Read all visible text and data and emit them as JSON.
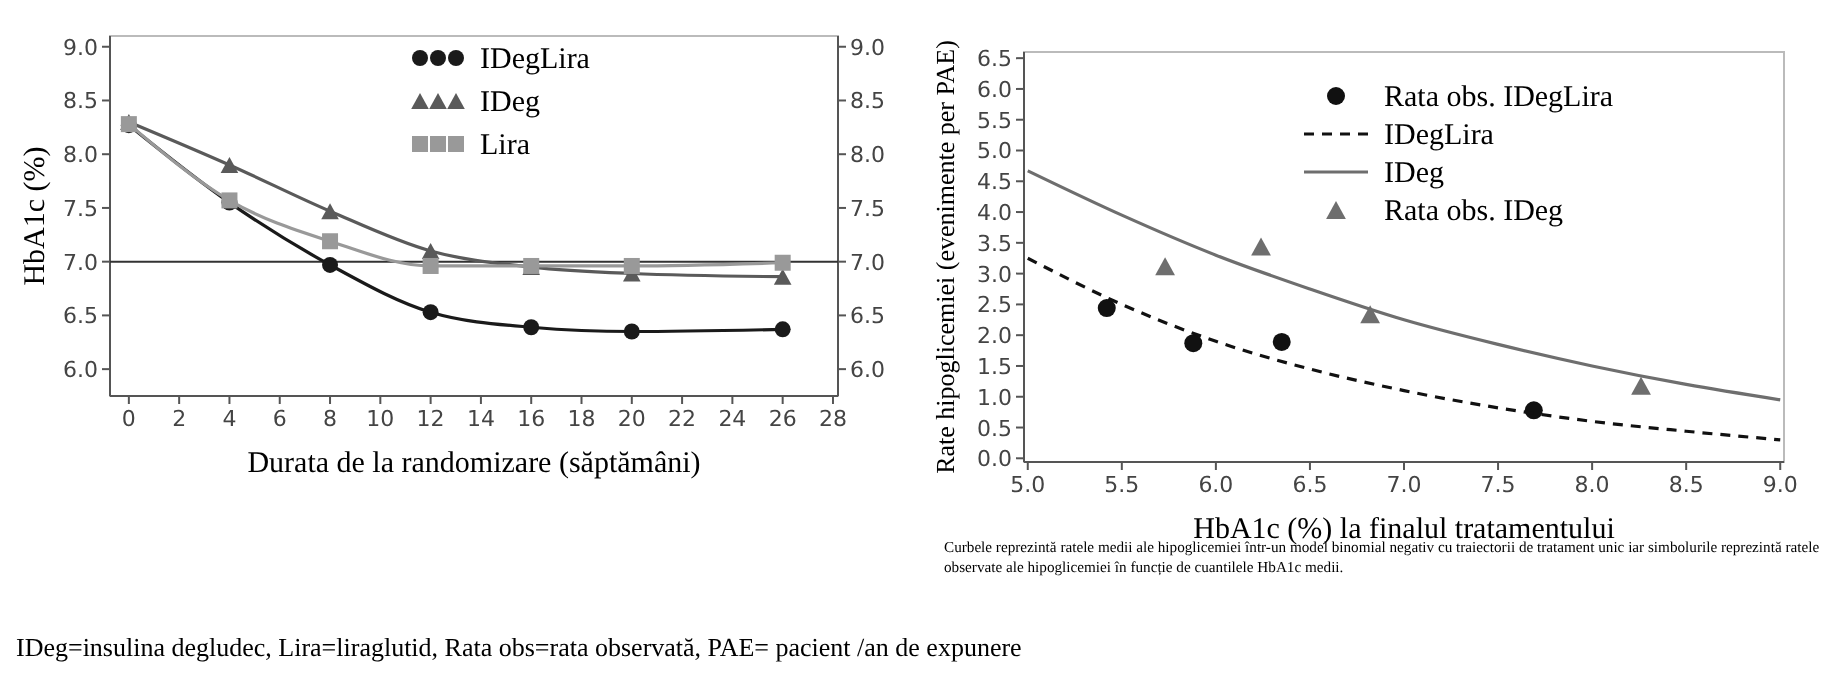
{
  "chart_data": [
    {
      "type": "line",
      "xlabel": "Durata de la randomizare (săptămâni)",
      "ylabel": "HbA1c (%)",
      "x": [
        0,
        4,
        8,
        12,
        16,
        20,
        26
      ],
      "series": [
        {
          "name": "IDegLira",
          "color": "#1a1a1a",
          "marker": "circle",
          "values": [
            8.27,
            7.55,
            6.97,
            6.53,
            6.39,
            6.35,
            6.37
          ]
        },
        {
          "name": "IDeg",
          "color": "#5a5a5a",
          "marker": "triangle",
          "values": [
            8.3,
            7.9,
            7.47,
            7.1,
            6.95,
            6.89,
            6.86
          ]
        },
        {
          "name": "Lira",
          "color": "#999999",
          "marker": "square",
          "values": [
            8.28,
            7.57,
            7.19,
            6.96,
            6.96,
            6.96,
            6.99
          ]
        }
      ],
      "xlim": [
        -0.75,
        28.2
      ],
      "xticks": [
        0,
        2,
        4,
        6,
        8,
        10,
        12,
        14,
        16,
        18,
        20,
        22,
        24,
        26,
        28
      ],
      "ylim": [
        5.75,
        9.1
      ],
      "yticks": [
        {
          "value": 6,
          "label": "6.0"
        },
        {
          "value": 6.5,
          "label": "6.5"
        },
        {
          "value": 7,
          "label": "7.0"
        },
        {
          "value": 7.5,
          "label": "7.5"
        },
        {
          "value": 8,
          "label": "8.0"
        },
        {
          "value": 8.5,
          "label": "8.5"
        },
        {
          "value": 9,
          "label": "9.0"
        }
      ],
      "y2lim": [
        5.75,
        9.1
      ],
      "y2ticks": [
        {
          "value": 6,
          "label": "6.0"
        },
        {
          "value": 6.5,
          "label": "6.5"
        },
        {
          "value": 7,
          "label": "7.0"
        },
        {
          "value": 7.5,
          "label": "7.5"
        },
        {
          "value": 8,
          "label": "8.0"
        },
        {
          "value": 8.5,
          "label": "8.5"
        },
        {
          "value": 9,
          "label": "9.0"
        }
      ],
      "ref_lines": [
        {
          "axis": "y",
          "value": 7,
          "color": "#333333"
        }
      ],
      "legend": "top",
      "grid": false,
      "annotations": [
        "IDeg=insulina degludec, Lira=liraglutid, Rata obs=rata observată, PAE= pacient /an de expunere"
      ]
    },
    {
      "type": "scatter",
      "xlabel": "HbA1c (%) la finalul tratamentului",
      "ylabel": "Rate hipoglicemiei (evenimente per PAE)",
      "series": [
        {
          "name": "Rata obs. IDegLira",
          "marker": "circle",
          "color": "#111111",
          "x": [
            5.42,
            5.88,
            6.35,
            7.69
          ],
          "values": [
            2.44,
            1.87,
            1.89,
            0.78
          ]
        },
        {
          "name": "IDegLira",
          "type": "line",
          "line_style": "dashed",
          "marker": "none",
          "color": "#111111",
          "x": [
            5,
            5.5,
            6,
            6.5,
            7,
            7.5,
            8,
            8.5,
            9
          ],
          "values": [
            3.25,
            2.5,
            1.9,
            1.45,
            1.1,
            0.82,
            0.6,
            0.44,
            0.3
          ]
        },
        {
          "name": "IDeg",
          "type": "line",
          "line_style": "solid",
          "marker": "none",
          "color": "#6e6e6e",
          "x": [
            5,
            5.5,
            6,
            6.5,
            7,
            7.5,
            8,
            8.5,
            9
          ],
          "values": [
            4.67,
            3.95,
            3.3,
            2.75,
            2.25,
            1.85,
            1.5,
            1.2,
            0.95
          ]
        },
        {
          "name": "Rata obs. IDeg",
          "marker": "triangle",
          "color": "#6e6e6e",
          "x": [
            5.73,
            6.24,
            6.82,
            8.26
          ],
          "values": [
            3.12,
            3.44,
            2.34,
            1.18
          ]
        }
      ],
      "xlim": [
        4.98,
        9.02
      ],
      "xticks": [
        {
          "value": 5,
          "label": "5.0"
        },
        {
          "value": 5.5,
          "label": "5.5"
        },
        {
          "value": 6,
          "label": "6.0"
        },
        {
          "value": 6.5,
          "label": "6.5"
        },
        {
          "value": 7,
          "label": "7.0"
        },
        {
          "value": 7.5,
          "label": "7.5"
        },
        {
          "value": 8,
          "label": "8.0"
        },
        {
          "value": 8.5,
          "label": "8.5"
        },
        {
          "value": 9,
          "label": "9.0"
        }
      ],
      "ylim": [
        -0.06,
        6.6
      ],
      "yticks": [
        {
          "value": 0,
          "label": "0.0"
        },
        {
          "value": 0.5,
          "label": "0.5"
        },
        {
          "value": 1,
          "label": "1.0"
        },
        {
          "value": 1.5,
          "label": "1.5"
        },
        {
          "value": 2,
          "label": "2.0"
        },
        {
          "value": 2.5,
          "label": "2.5"
        },
        {
          "value": 3,
          "label": "3.0"
        },
        {
          "value": 3.5,
          "label": "3.5"
        },
        {
          "value": 4,
          "label": "4.0"
        },
        {
          "value": 4.5,
          "label": "4.5"
        },
        {
          "value": 5,
          "label": "5.0"
        },
        {
          "value": 5.5,
          "label": "5.5"
        },
        {
          "value": 6,
          "label": "6.0"
        },
        {
          "value": 6.5,
          "label": "6.5"
        }
      ],
      "legend": "top right",
      "grid": false,
      "annotations": [
        "Curbele reprezintă ratele medii ale hipoglicemiei într-un model binomial negativ cu traiectorii de tratament unic iar simbolurile reprezintă ratele observate ale hipoglicemiei în funcție de cuantilele HbA1c medii."
      ]
    }
  ]
}
